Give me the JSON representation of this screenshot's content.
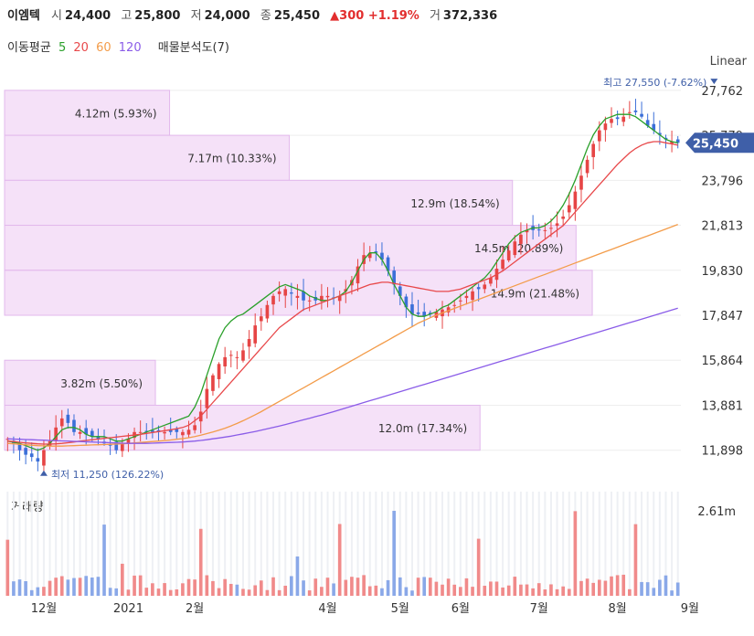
{
  "header": {
    "name": "이엠텍",
    "open_label": "시",
    "open": "24,400",
    "high_label": "고",
    "high": "25,800",
    "low_label": "저",
    "low": "24,000",
    "close_label": "종",
    "close": "25,450",
    "change": "▲300 +1.19%",
    "volume_label": "거",
    "volume": "372,336"
  },
  "ma_legend": {
    "label": "이동평균",
    "periods": [
      "5",
      "20",
      "60",
      "120"
    ],
    "colors": [
      "#2aa02a",
      "#e8484a",
      "#f39c4a",
      "#8a5ce8"
    ],
    "volume_profile_label": "매물분석도(7)"
  },
  "scale_mode": "Linear",
  "volume_title": "거래량",
  "chart_data": {
    "type": "candlestick",
    "ylim": [
      11000,
      28200
    ],
    "y_ticks": [
      "27,762",
      "25,779",
      "23,796",
      "21,813",
      "19,830",
      "17,847",
      "15,864",
      "13,881",
      "11,898"
    ],
    "y_tick_values": [
      27762,
      25779,
      23796,
      21813,
      19830,
      17847,
      15864,
      13881,
      11898
    ],
    "x_ticks": [
      "12월",
      "2021",
      "2월",
      "4월",
      "5월",
      "6월",
      "7월",
      "8월",
      "9월"
    ],
    "x_tick_index": [
      6,
      20,
      31,
      53,
      65,
      75,
      88,
      101,
      113
    ],
    "last_price": "25,450",
    "last_price_value": 25450,
    "high_annotation": {
      "label": "최고",
      "value": "27,550 (-7.62%)",
      "price": 27550,
      "index": 117
    },
    "low_annotation": {
      "label": "최저",
      "value": "11,250 (126.22%)",
      "price": 11250,
      "index": 6
    },
    "closes": [
      12400,
      12200,
      11900,
      11700,
      11600,
      11400,
      11900,
      12300,
      12900,
      13300,
      13100,
      12700,
      12700,
      12600,
      12500,
      12400,
      12200,
      12100,
      11900,
      12200,
      12400,
      12700,
      12700,
      12700,
      12700,
      12700,
      12700,
      12700,
      12700,
      12700,
      12800,
      13000,
      13600,
      14600,
      15200,
      15700,
      16000,
      16100,
      16000,
      16300,
      16800,
      17400,
      17800,
      18300,
      18700,
      18900,
      19000,
      18800,
      18700,
      18500,
      18500,
      18500,
      18700,
      18700,
      18600,
      18700,
      19000,
      19400,
      20000,
      20500,
      20600,
      20600,
      20300,
      19800,
      19200,
      18700,
      18200,
      17900,
      17900,
      17800,
      17900,
      18000,
      18100,
      18200,
      18300,
      18500,
      18700,
      18900,
      19000,
      19200,
      19500,
      19900,
      20300,
      20700,
      21100,
      21400,
      21600,
      21600,
      21600,
      21600,
      21700,
      21900,
      22200,
      22700,
      23300,
      24000,
      24700,
      25400,
      26000,
      26300,
      26500,
      26500,
      26600,
      26800,
      26800,
      26600,
      26200,
      26000,
      25800,
      25600,
      25500,
      25450
    ],
    "ma_series": [
      {
        "name": "5",
        "values": [
          12300,
          12250,
          12200,
          12100,
          12000,
          11900,
          12000,
          12200,
          12500,
          12800,
          12900,
          12900,
          12800,
          12600,
          12500,
          12500,
          12500,
          12400,
          12300,
          12300,
          12400,
          12500,
          12600,
          12700,
          12800,
          12900,
          13000,
          13100,
          13200,
          13300,
          13400,
          13800,
          14400,
          15200,
          16000,
          16800,
          17300,
          17600,
          17800,
          17900,
          18100,
          18300,
          18500,
          18700,
          18900,
          19100,
          19200,
          19100,
          19000,
          18900,
          18700,
          18600,
          18500,
          18500,
          18600,
          18700,
          18900,
          19300,
          19800,
          20300,
          20600,
          20600,
          20300,
          19800,
          19200,
          18700,
          18200,
          17900,
          17800,
          17800,
          17900,
          18000,
          18200,
          18300,
          18500,
          18700,
          18900,
          19100,
          19300,
          19500,
          19800,
          20200,
          20600,
          21000,
          21300,
          21500,
          21600,
          21700,
          21700,
          21800,
          22000,
          22300,
          22700,
          23200,
          23800,
          24500,
          25200,
          25800,
          26200,
          26500,
          26600,
          26700,
          26700,
          26700,
          26600,
          26400,
          26200,
          26000,
          25800,
          25600,
          25500,
          25450
        ]
      },
      {
        "name": "20",
        "values": [
          12300,
          12280,
          12250,
          12220,
          12200,
          12180,
          12170,
          12170,
          12180,
          12200,
          12230,
          12260,
          12300,
          12330,
          12360,
          12390,
          12420,
          12450,
          12480,
          12510,
          12540,
          12570,
          12600,
          12640,
          12680,
          12720,
          12760,
          12800,
          12850,
          12900,
          13000,
          13200,
          13400,
          13700,
          14000,
          14300,
          14600,
          14900,
          15200,
          15500,
          15800,
          16100,
          16400,
          16700,
          17000,
          17300,
          17500,
          17700,
          17900,
          18100,
          18200,
          18300,
          18400,
          18500,
          18600,
          18700,
          18800,
          18900,
          19000,
          19100,
          19200,
          19250,
          19300,
          19300,
          19250,
          19200,
          19150,
          19100,
          19050,
          19000,
          18950,
          18900,
          18900,
          18900,
          18950,
          19000,
          19100,
          19200,
          19300,
          19400,
          19500,
          19650,
          19800,
          20000,
          20200,
          20400,
          20600,
          20800,
          21000,
          21200,
          21400,
          21600,
          21800,
          22100,
          22400,
          22700,
          23000,
          23300,
          23600,
          23900,
          24200,
          24500,
          24750,
          25000,
          25200,
          25350,
          25450,
          25500,
          25500,
          25450,
          25400,
          25350
        ]
      },
      {
        "name": "60",
        "values": [
          12200,
          12180,
          12160,
          12140,
          12120,
          12100,
          12090,
          12080,
          12080,
          12080,
          12090,
          12100,
          12110,
          12120,
          12130,
          12140,
          12150,
          12160,
          12170,
          12180,
          12200,
          12220,
          12240,
          12260,
          12280,
          12300,
          12320,
          12350,
          12380,
          12410,
          12450,
          12500,
          12560,
          12630,
          12700,
          12780,
          12870,
          12970,
          13080,
          13200,
          13330,
          13460,
          13600,
          13750,
          13900,
          14050,
          14200,
          14350,
          14500,
          14650,
          14800,
          14950,
          15100,
          15250,
          15400,
          15550,
          15700,
          15850,
          16000,
          16150,
          16300,
          16450,
          16600,
          16750,
          16900,
          17050,
          17200,
          17350,
          17500,
          17620,
          17740,
          17850,
          17950,
          18050,
          18150,
          18250,
          18350,
          18450,
          18550,
          18650,
          18750,
          18850,
          18950,
          19050,
          19150,
          19250,
          19350,
          19450,
          19550,
          19650,
          19750,
          19850,
          19950,
          20050,
          20150,
          20250,
          20350,
          20450,
          20550,
          20650,
          20750,
          20850,
          20950,
          21050,
          21150,
          21250,
          21350,
          21450,
          21550,
          21650,
          21750,
          21850
        ]
      },
      {
        "name": "120",
        "values": [
          12400,
          12390,
          12380,
          12370,
          12360,
          12350,
          12340,
          12330,
          12320,
          12310,
          12300,
          12290,
          12280,
          12270,
          12260,
          12250,
          12240,
          12230,
          12220,
          12210,
          12200,
          12200,
          12200,
          12200,
          12210,
          12220,
          12230,
          12240,
          12250,
          12260,
          12280,
          12300,
          12330,
          12360,
          12400,
          12440,
          12480,
          12520,
          12570,
          12620,
          12670,
          12720,
          12780,
          12840,
          12900,
          12960,
          13030,
          13100,
          13170,
          13240,
          13310,
          13380,
          13450,
          13520,
          13600,
          13680,
          13760,
          13840,
          13920,
          14000,
          14080,
          14160,
          14240,
          14320,
          14400,
          14480,
          14560,
          14640,
          14720,
          14800,
          14880,
          14960,
          15040,
          15120,
          15200,
          15280,
          15360,
          15440,
          15520,
          15600,
          15680,
          15760,
          15840,
          15920,
          16000,
          16080,
          16160,
          16240,
          16320,
          16400,
          16480,
          16560,
          16640,
          16720,
          16800,
          16880,
          16960,
          17040,
          17120,
          17200,
          17280,
          17360,
          17440,
          17520,
          17600,
          17680,
          17760,
          17840,
          17920,
          18000,
          18080,
          18160
        ]
      }
    ],
    "volume_profile": [
      {
        "label": "4.12m (5.93%)",
        "fraction": 0.244,
        "low": 25779,
        "high": 27762
      },
      {
        "label": "7.17m (10.33%)",
        "fraction": 0.421,
        "low": 23796,
        "high": 25779
      },
      {
        "label": "12.9m (18.54%)",
        "fraction": 0.751,
        "low": 21813,
        "high": 23796
      },
      {
        "label": "14.5m (20.89%)",
        "fraction": 0.845,
        "low": 19830,
        "high": 21813
      },
      {
        "label": "14.9m (21.48%)",
        "fraction": 0.869,
        "low": 17847,
        "high": 19830
      },
      {
        "label": "3.82m (5.50%)",
        "fraction": 0.223,
        "low": 13881,
        "high": 15864
      },
      {
        "label": "12.0m (17.34%)",
        "fraction": 0.703,
        "low": 11898,
        "high": 13881
      }
    ],
    "volume": {
      "tick": "2.61m",
      "tick_value": 2610000,
      "max": 3200000
    }
  }
}
